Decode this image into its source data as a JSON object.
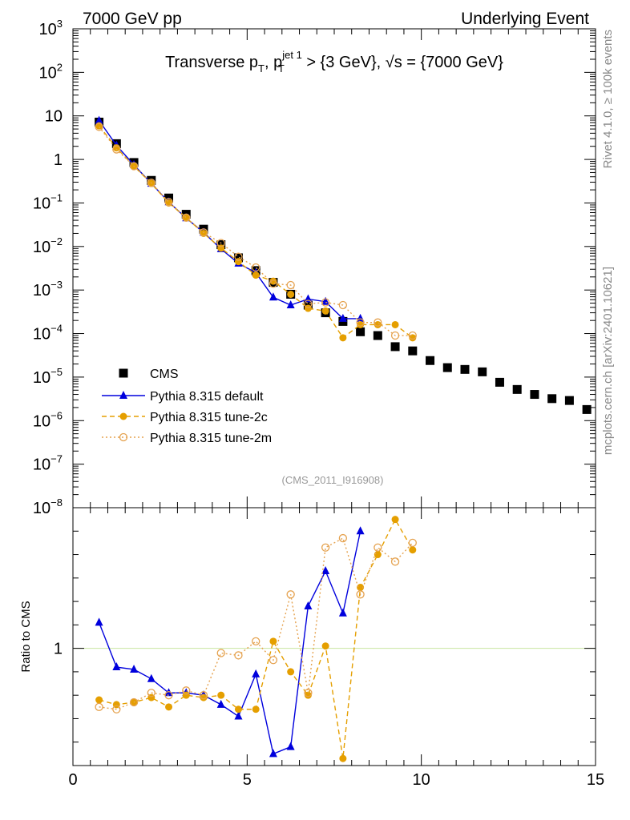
{
  "header": {
    "left": "7000 GeV pp",
    "right": "Underlying Event"
  },
  "side_labels": {
    "rivet": "Rivet 4.1.0, ≥ 100k events",
    "mcplots": "mcplots.cern.ch [arXiv:2401.10621]"
  },
  "chart_data": {
    "type": "scatter",
    "title_parts": {
      "a": "Transverse p",
      "a_sub": "T",
      "b": ", p",
      "b_sup": "jet 1",
      "b_sub": "T",
      "c": " > {3 GeV}, √s = {7000 GeV}"
    },
    "analysis_tag": "(CMS_2011_I916908)",
    "ratio_ylabel": "Ratio to CMS",
    "xlim": [
      0,
      15
    ],
    "x_ticks": [
      "0",
      "5",
      "10",
      "15"
    ],
    "main_ylim": [
      1e-08,
      1000
    ],
    "main_yscale": "log",
    "main_y_ticks": [
      {
        "base": "10",
        "exp": "3",
        "v": 1000
      },
      {
        "base": "10",
        "exp": "2",
        "v": 100
      },
      {
        "base": "10",
        "exp": "",
        "v": 10
      },
      {
        "base": "1",
        "exp": "",
        "v": 1
      },
      {
        "base": "10",
        "exp": "−1",
        "v": 0.1
      },
      {
        "base": "10",
        "exp": "−2",
        "v": 0.01
      },
      {
        "base": "10",
        "exp": "−3",
        "v": 0.001
      },
      {
        "base": "10",
        "exp": "−4",
        "v": 0.0001
      },
      {
        "base": "10",
        "exp": "−5",
        "v": 1e-05
      },
      {
        "base": "10",
        "exp": "−6",
        "v": 1e-06
      },
      {
        "base": "10",
        "exp": "−7",
        "v": 1e-07
      },
      {
        "base": "10",
        "exp": "−8",
        "v": 1e-08
      }
    ],
    "ratio_ylim": [
      0.5,
      1.6
    ],
    "ratio_ref_label": "1",
    "legend_position": "lower-left",
    "colors": {
      "cms": "#000000",
      "default": "#0000dd",
      "tune2c": "#e59f00",
      "tune2m": "#e5a24f",
      "refline": "#c8e6a0"
    },
    "series": [
      {
        "name": "CMS",
        "style": "square",
        "x": [
          0.75,
          1.25,
          1.75,
          2.25,
          2.75,
          3.25,
          3.75,
          4.25,
          4.75,
          5.25,
          5.75,
          6.25,
          6.75,
          7.25,
          7.75,
          8.25,
          8.75,
          9.25,
          9.75,
          10.25,
          10.75,
          11.25,
          11.75,
          12.25,
          12.75,
          13.25,
          13.75,
          14.25,
          14.75
        ],
        "y": [
          7.2,
          2.3,
          0.85,
          0.33,
          0.13,
          0.055,
          0.025,
          0.011,
          0.0055,
          0.0028,
          0.0015,
          0.0008,
          0.00045,
          0.0003,
          0.00019,
          0.00011,
          9e-05,
          5e-05,
          4e-05,
          2.4e-05,
          1.65e-05,
          1.5e-05,
          1.32e-05,
          7.6e-06,
          5.2e-06,
          4e-06,
          3.2e-06,
          2.9e-06,
          1.8e-06
        ]
      },
      {
        "name": "Pythia 8.315 default",
        "style": "triangle-solid",
        "x": [
          0.75,
          1.25,
          1.75,
          2.25,
          2.75,
          3.25,
          3.75,
          4.25,
          4.75,
          5.25,
          5.75,
          6.25,
          6.75,
          7.25,
          7.75,
          8.25
        ],
        "y": [
          7.8,
          2.1,
          0.75,
          0.28,
          0.105,
          0.045,
          0.021,
          0.0088,
          0.0041,
          0.0025,
          0.00068,
          0.00045,
          0.00062,
          0.00054,
          0.00022,
          0.00022
        ],
        "ratio": [
          1.11,
          0.92,
          0.91,
          0.87,
          0.81,
          0.81,
          0.8,
          0.76,
          0.71,
          0.89,
          0.55,
          0.58,
          1.18,
          1.33,
          1.15,
          1.5
        ]
      },
      {
        "name": "Pythia 8.315 tune-2c",
        "style": "circle-solid",
        "x": [
          0.75,
          1.25,
          1.75,
          2.25,
          2.75,
          3.25,
          3.75,
          4.25,
          4.75,
          5.25,
          5.75,
          6.25,
          6.75,
          7.25,
          7.75,
          8.25,
          8.75,
          9.25,
          9.75
        ],
        "y": [
          5.9,
          1.85,
          0.7,
          0.28,
          0.1,
          0.046,
          0.02,
          0.0092,
          0.0045,
          0.0022,
          0.0016,
          0.0008,
          0.00038,
          0.00033,
          8e-05,
          0.00016,
          0.00016,
          0.00016,
          8e-05
        ],
        "ratio": [
          0.78,
          0.76,
          0.77,
          0.79,
          0.75,
          0.8,
          0.79,
          0.8,
          0.74,
          0.74,
          1.03,
          0.9,
          0.8,
          1.01,
          0.53,
          1.26,
          1.4,
          1.55,
          1.42
        ]
      },
      {
        "name": "Pythia 8.315 tune-2m",
        "style": "circle-open",
        "x": [
          0.75,
          1.25,
          1.75,
          2.25,
          2.75,
          3.25,
          3.75,
          4.25,
          4.75,
          5.25,
          5.75,
          6.25,
          6.75,
          7.25,
          7.75,
          8.25,
          8.75,
          9.25,
          9.75
        ],
        "y": [
          5.6,
          1.7,
          0.7,
          0.29,
          0.105,
          0.046,
          0.021,
          0.012,
          0.0058,
          0.0033,
          0.0014,
          0.0013,
          0.00048,
          0.00052,
          0.00045,
          0.00018,
          0.00018,
          9e-05,
          9e-05
        ],
        "ratio": [
          0.75,
          0.74,
          0.77,
          0.81,
          0.8,
          0.82,
          0.8,
          0.98,
          0.97,
          1.03,
          0.95,
          1.23,
          0.81,
          1.43,
          1.47,
          1.23,
          1.43,
          1.37,
          1.45
        ]
      }
    ]
  }
}
